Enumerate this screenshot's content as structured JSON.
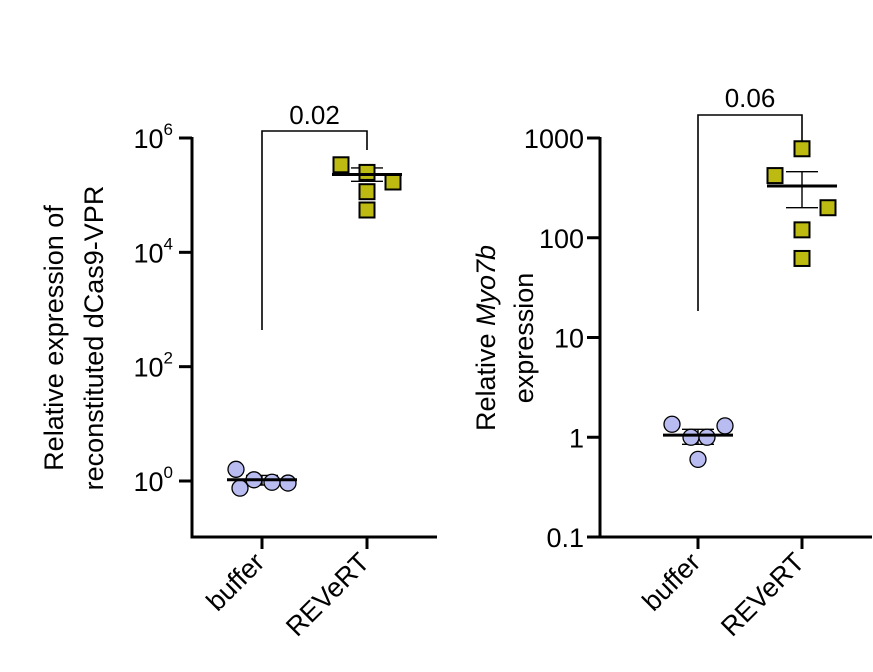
{
  "chart_data": [
    {
      "type": "scatter",
      "scale": "log",
      "ylabel_lines": [
        "Relative expression of",
        "reconstituted dCas9-VPR"
      ],
      "categories": [
        "buffer",
        "REVeRT"
      ],
      "y_ticks": [
        {
          "value": 1,
          "base": "10",
          "exp": "0"
        },
        {
          "value": 100,
          "base": "10",
          "exp": "2"
        },
        {
          "value": 10000,
          "base": "10",
          "exp": "4"
        },
        {
          "value": 1000000,
          "base": "10",
          "exp": "6"
        }
      ],
      "ylim": [
        0.12,
        1000000
      ],
      "comparison": {
        "label": "0.02",
        "from": "buffer",
        "to": "REVeRT"
      },
      "series": [
        {
          "category": "buffer",
          "marker": "circle",
          "color": "#b9bcf0",
          "values": [
            1.6,
            1.05,
            0.75,
            0.95,
            0.92
          ],
          "mean": 1.05,
          "sem": [
            0.85,
            1.25
          ]
        },
        {
          "category": "REVeRT",
          "marker": "square",
          "color": "#bdbb12",
          "values": [
            340000,
            250000,
            170000,
            115000,
            55000
          ],
          "mean": 230000,
          "sem": [
            175000,
            300000
          ]
        }
      ]
    },
    {
      "type": "scatter",
      "scale": "log",
      "ylabel_lines_italic": [
        [
          {
            "t": "Relative ",
            "i": false
          },
          {
            "t": "Myo7b",
            "i": true
          }
        ],
        [
          {
            "t": "expression",
            "i": false
          }
        ]
      ],
      "categories": [
        "buffer",
        "REVeRT"
      ],
      "y_ticks": [
        {
          "value": 0.1,
          "label": "0.1"
        },
        {
          "value": 1,
          "label": "1"
        },
        {
          "value": 10,
          "label": "10"
        },
        {
          "value": 100,
          "label": "100"
        },
        {
          "value": 1000,
          "label": "1000"
        }
      ],
      "ylim": [
        0.1,
        1000
      ],
      "comparison": {
        "label": "0.06",
        "from": "buffer",
        "to": "REVeRT"
      },
      "series": [
        {
          "category": "buffer",
          "marker": "circle",
          "color": "#b9bcf0",
          "values": [
            1.35,
            1.3,
            1.0,
            1.0,
            0.6
          ],
          "mean": 1.05,
          "sem": [
            0.85,
            1.2
          ]
        },
        {
          "category": "REVeRT",
          "marker": "square",
          "color": "#bdbb12",
          "values": [
            780,
            420,
            200,
            120,
            62
          ],
          "mean": 330,
          "sem": [
            200,
            460
          ]
        }
      ]
    }
  ]
}
